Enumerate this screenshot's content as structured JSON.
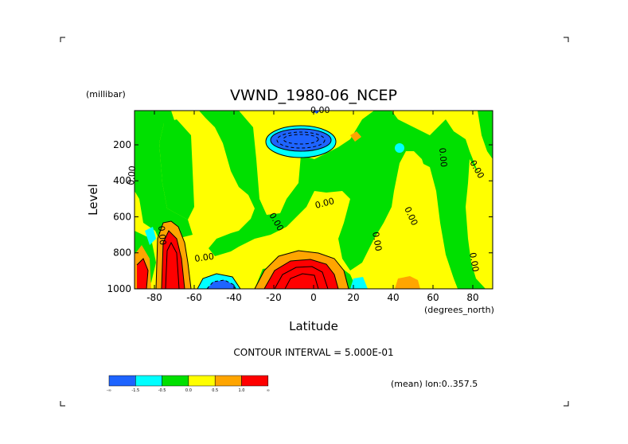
{
  "chart_data": {
    "type": "heatmap",
    "title": "VWND_1980-06_NCEP",
    "xlabel": "Latitude",
    "x_units": "(degrees_north)",
    "ylabel": "Level",
    "y_units": "(millibar)",
    "xlim": [
      -90,
      90
    ],
    "ylim": [
      1000,
      10
    ],
    "y_inverted": true,
    "x_ticks": [
      "-80",
      "-60",
      "-40",
      "-20",
      "0",
      "20",
      "40",
      "60",
      "80"
    ],
    "x_tick_values": [
      -80,
      -60,
      -40,
      -20,
      0,
      20,
      40,
      60,
      80
    ],
    "y_ticks": [
      "200",
      "400",
      "600",
      "800",
      "1000"
    ],
    "y_tick_values": [
      200,
      400,
      600,
      800,
      1000
    ],
    "contour_interval_text": "CONTOUR INTERVAL = 5.000E-01",
    "footer_text": "(mean) lon:0..357.5",
    "zero_contour_label": "0.00",
    "colorbar": {
      "colors": [
        "#1e64ff",
        "#00ffff",
        "#00e000",
        "#ffff00",
        "#ffa500",
        "#ff0000"
      ],
      "labels": [
        "-∞",
        "-1.5",
        "-0.5",
        "0.0",
        "0.5",
        "1.0",
        "∞"
      ]
    },
    "regions": [
      {
        "name": "background",
        "value_range": [
          0.0,
          0.5
        ],
        "color": "#ffff00"
      },
      {
        "name": "neg-band-left",
        "value_range": [
          -0.5,
          0.0
        ],
        "color": "#00e000",
        "lat": [
          -74,
          -54
        ],
        "lev": [
          60,
          700
        ]
      },
      {
        "name": "neg-upper-center",
        "value_range": [
          -0.5,
          0.0
        ],
        "color": "#00e000",
        "lat": [
          -40,
          25
        ],
        "lev": [
          60,
          320
        ]
      },
      {
        "name": "upper-tropical-minimum",
        "value_range": [
          "-inf",
          -1.5
        ],
        "color": "#1e64ff",
        "lat": [
          -25,
          0
        ],
        "lev": [
          140,
          230
        ]
      },
      {
        "name": "neg-mid-center",
        "value_range": [
          -0.5,
          0.0
        ],
        "color": "#00e000",
        "lat": [
          -25,
          25
        ],
        "lev": [
          300,
          650
        ]
      },
      {
        "name": "neg-right-band",
        "value_range": [
          -0.5,
          0.0
        ],
        "color": "#00e000",
        "lat": [
          10,
          45
        ],
        "lev": [
          40,
          950
        ]
      },
      {
        "name": "neg-far-right",
        "value_range": [
          -0.5,
          0.0
        ],
        "color": "#00e000",
        "lat": [
          50,
          90
        ],
        "lev": [
          60,
          1000
        ]
      },
      {
        "name": "low-level-max-left",
        "value_range": [
          1.0,
          "inf"
        ],
        "color": "#ff0000",
        "lat": [
          -77,
          -69
        ],
        "lev": [
          720,
          1000
        ]
      },
      {
        "name": "low-level-max-far-left",
        "value_range": [
          1.0,
          "inf"
        ],
        "color": "#ff0000",
        "lat": [
          -90,
          -86
        ],
        "lev": [
          820,
          1000
        ]
      },
      {
        "name": "low-level-max-center",
        "value_range": [
          1.0,
          "inf"
        ],
        "color": "#ff0000",
        "lat": [
          -15,
          5
        ],
        "lev": [
          830,
          1000
        ]
      },
      {
        "name": "low-level-min-left",
        "value_range": [
          -1.5,
          -0.5
        ],
        "color": "#00ffff",
        "lat": [
          -57,
          -45
        ],
        "lev": [
          940,
          1000
        ]
      },
      {
        "name": "orange-patch-right",
        "value_range": [
          0.5,
          1.0
        ],
        "color": "#ffa500",
        "lat": [
          36,
          48
        ],
        "lev": [
          940,
          1000
        ]
      }
    ]
  }
}
